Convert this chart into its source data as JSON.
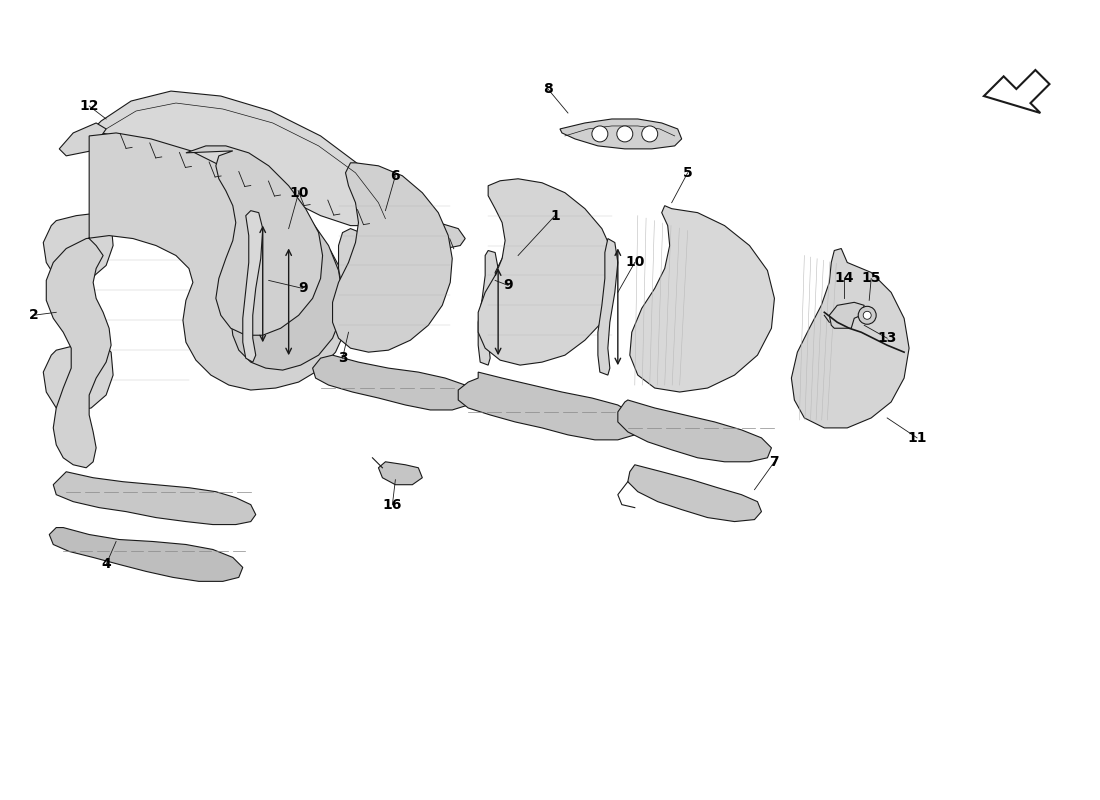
{
  "background_color": "#ffffff",
  "line_color": "#1a1a1a",
  "label_color": "#000000",
  "label_fontsize": 10,
  "line_width": 0.8,
  "fill_color": "#e8e8e8",
  "fill_light": "#f0f0f0",
  "fill_mid": "#d8d8d8",
  "fill_dark": "#c8c8c8"
}
